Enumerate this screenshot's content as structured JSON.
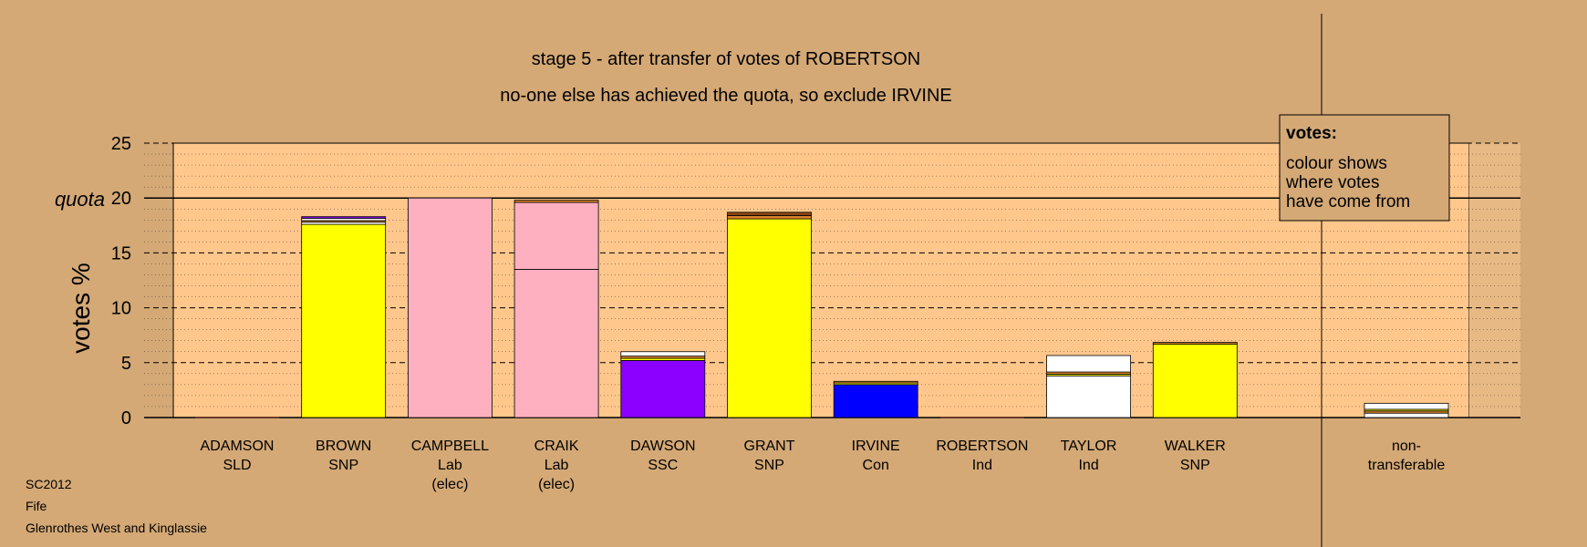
{
  "chart_data": {
    "type": "bar",
    "title": "stage 5 - after transfer of votes of ROBERTSON",
    "subtitle": "no-one else has achieved the quota, so exclude IRVINE",
    "ylabel": "votes %",
    "ylim": [
      0,
      25
    ],
    "yticks": [
      0,
      5,
      10,
      15,
      20,
      25
    ],
    "quota": 20,
    "quota_label": "quota",
    "grid": true,
    "legend": {
      "position": "top-right",
      "title": "votes:",
      "lines": [
        "colour shows",
        "where votes",
        "have come from"
      ]
    },
    "candidates": [
      {
        "name": "ADAMSON",
        "party": "SLD",
        "note": "",
        "segments": []
      },
      {
        "name": "BROWN",
        "party": "SNP",
        "note": "",
        "segments": [
          {
            "value": 17.6,
            "color": "#FFFF00"
          },
          {
            "value": 0.2,
            "color": "#FFFFFF"
          },
          {
            "value": 0.15,
            "color": "#D9822B"
          },
          {
            "value": 0.2,
            "color": "#FFFFFF"
          },
          {
            "value": 0.15,
            "color": "#8B00FF"
          }
        ]
      },
      {
        "name": "CAMPBELL",
        "party": "Lab",
        "note": "(elec)",
        "segments": [
          {
            "value": 20.0,
            "color": "#FFB0C0"
          }
        ]
      },
      {
        "name": "CRAIK",
        "party": "Lab",
        "note": "(elec)",
        "segments": [
          {
            "value": 13.5,
            "color": "#FFB0C0"
          },
          {
            "value": 6.1,
            "color": "#FFB0C0"
          },
          {
            "value": 0.2,
            "color": "#D9822B"
          }
        ]
      },
      {
        "name": "DAWSON",
        "party": "SSC",
        "note": "",
        "segments": [
          {
            "value": 5.2,
            "color": "#8B00FF"
          },
          {
            "value": 0.2,
            "color": "#FFFF00"
          },
          {
            "value": 0.2,
            "color": "#D9822B"
          },
          {
            "value": 0.4,
            "color": "#FFFFFF"
          }
        ]
      },
      {
        "name": "GRANT",
        "party": "SNP",
        "note": "",
        "segments": [
          {
            "value": 18.1,
            "color": "#FFFF00"
          },
          {
            "value": 0.3,
            "color": "#D9822B"
          },
          {
            "value": 0.3,
            "color": "#8B4513"
          }
        ]
      },
      {
        "name": "IRVINE",
        "party": "Con",
        "note": "",
        "segments": [
          {
            "value": 3.0,
            "color": "#0000FF"
          },
          {
            "value": 0.15,
            "color": "#FFFF00"
          },
          {
            "value": 0.15,
            "color": "#D9822B"
          }
        ]
      },
      {
        "name": "ROBERTSON",
        "party": "Ind",
        "note": "",
        "segments": []
      },
      {
        "name": "TAYLOR",
        "party": "Ind",
        "note": "",
        "segments": [
          {
            "value": 3.8,
            "color": "#FFFFFF"
          },
          {
            "value": 0.15,
            "color": "#FFFF00"
          },
          {
            "value": 0.2,
            "color": "#D9822B"
          },
          {
            "value": 1.5,
            "color": "#FFFFFF"
          }
        ]
      },
      {
        "name": "WALKER",
        "party": "SNP",
        "note": "",
        "segments": [
          {
            "value": 6.7,
            "color": "#FFFF00"
          },
          {
            "value": 0.15,
            "color": "#D9822B"
          }
        ]
      }
    ],
    "nontransferable": {
      "label": [
        "non-",
        "transferable"
      ],
      "segments": [
        {
          "value": 0.4,
          "color": "#FFFFFF"
        },
        {
          "value": 0.2,
          "color": "#D9822B"
        },
        {
          "value": 0.15,
          "color": "#FFFF00"
        },
        {
          "value": 0.55,
          "color": "#FFFFFF"
        }
      ]
    }
  },
  "footer": {
    "line1": "SC2012",
    "line2": "Fife",
    "line3": "Glenrothes West and Kinglassie"
  },
  "colors": {
    "background": "#D4A976",
    "plot_area": "#FFC78C",
    "axis": "#000000"
  }
}
